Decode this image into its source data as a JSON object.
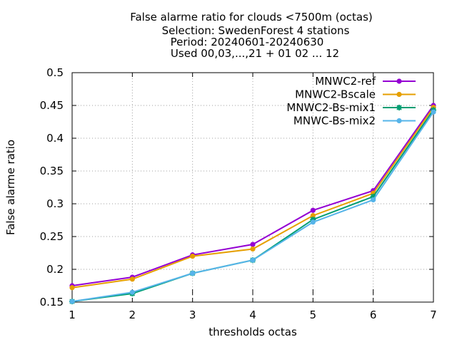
{
  "chart_data": {
    "type": "line",
    "title_lines": [
      "False alarme ratio  for clouds <7500m (octas)",
      "Selection: SwedenForest      4 stations",
      "Period: 20240601-20240630",
      "Used 00,03,...,21 + 01 02 ... 12"
    ],
    "xlabel": "thresholds octas",
    "ylabel": "False alarme ratio",
    "xlim": [
      1,
      7
    ],
    "ylim": [
      0.15,
      0.5
    ],
    "xticks": [
      "1",
      "2",
      "3",
      "4",
      "5",
      "6",
      "7"
    ],
    "yticks": [
      "0.15",
      "0.2",
      "0.25",
      "0.3",
      "0.35",
      "0.4",
      "0.45",
      "0.5"
    ],
    "grid": true,
    "legend_position": "top-right",
    "x": [
      1,
      2,
      3,
      4,
      5,
      6,
      7
    ],
    "series": [
      {
        "name": "MNWC2-ref",
        "color": "#9400d3",
        "marker": "circle",
        "values": [
          0.175,
          0.188,
          0.222,
          0.238,
          0.29,
          0.32,
          0.45
        ]
      },
      {
        "name": "MNWC2-Bscale",
        "color": "#e69f00",
        "marker": "circle",
        "values": [
          0.172,
          0.185,
          0.22,
          0.231,
          0.282,
          0.316,
          0.447
        ]
      },
      {
        "name": "MNWC2-Bs-mix1",
        "color": "#009e73",
        "marker": "star",
        "values": [
          0.151,
          0.163,
          0.194,
          0.214,
          0.276,
          0.311,
          0.443
        ]
      },
      {
        "name": "MNWC-Bs-mix2",
        "color": "#56b4e9",
        "marker": "circle",
        "values": [
          0.151,
          0.165,
          0.194,
          0.214,
          0.272,
          0.306,
          0.44
        ]
      }
    ]
  }
}
